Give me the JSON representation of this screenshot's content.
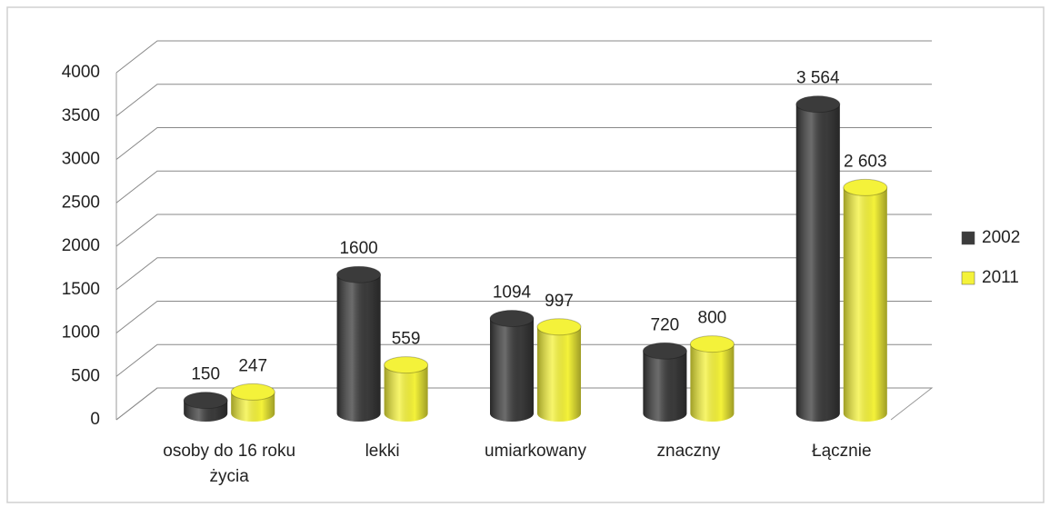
{
  "chart_data": {
    "type": "bar3d",
    "categories": [
      "osoby do 16 roku życia",
      "lekki",
      "umiarkowany",
      "znaczny",
      "Łącznie"
    ],
    "series": [
      {
        "name": "2002",
        "color": "#3b3b3b",
        "values": [
          150,
          1600,
          1094,
          720,
          3564
        ],
        "value_labels": [
          "150",
          "1600",
          "1094",
          "720",
          "3 564"
        ]
      },
      {
        "name": "2011",
        "color": "#f4f23a",
        "values": [
          247,
          559,
          997,
          800,
          2603
        ],
        "value_labels": [
          "247",
          "559",
          "997",
          "800",
          "2 603"
        ]
      }
    ],
    "ylim": [
      0,
      4000
    ],
    "yticks": [
      0,
      500,
      1000,
      1500,
      2000,
      2500,
      3000,
      3500,
      4000
    ],
    "grid": true,
    "legend": "right"
  }
}
